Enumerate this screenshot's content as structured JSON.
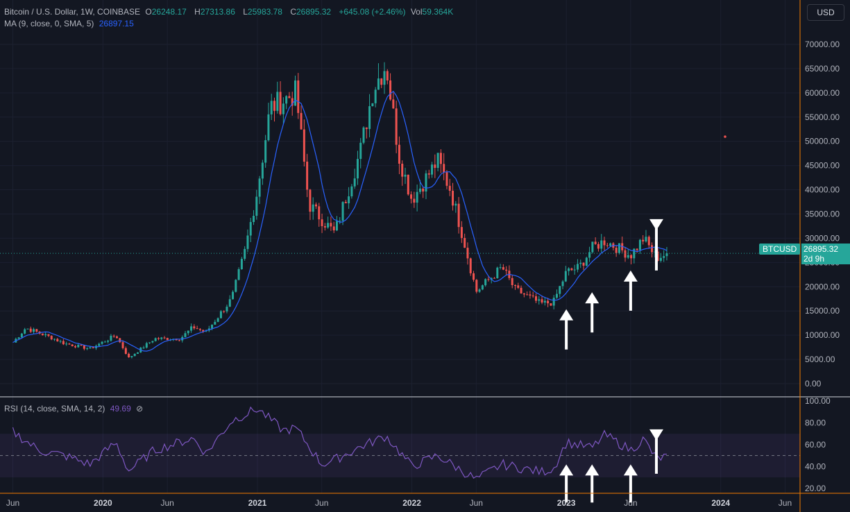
{
  "header": {
    "symbol": "Bitcoin / U.S. Dollar, 1W, COINBASE",
    "open_label": "O",
    "open": "26248.17",
    "high_label": "H",
    "high": "27313.86",
    "low_label": "L",
    "low": "25983.78",
    "close_label": "C",
    "close": "26895.32",
    "change": "+645.08 (+2.46%)",
    "vol_label": "Vol",
    "vol": "59.364K",
    "ma_label": "MA (9, close, 0, SMA, 5)",
    "ma_value": "26897.15",
    "rsi_label": "RSI (14, close, SMA, 14, 2)",
    "rsi_value": "49.69"
  },
  "currency": "USD",
  "last_price": {
    "symbol": "BTCUSD",
    "price": "26895.32",
    "countdown": "2d 9h"
  },
  "colors": {
    "up": "#26a69a",
    "down": "#ef5350",
    "ma": "#2962ff",
    "rsi": "#7e57c2",
    "price_badge": "#26a69a",
    "axis_border": "#f57c00"
  },
  "chart_data": [
    {
      "type": "candlestick",
      "series": [
        {
          "name": "Bitcoin / U.S. Dollar, 1W, COINBASE",
          "note": "weekly closes, estimated",
          "key_points": [
            {
              "x": "2019-06",
              "y": 8500
            },
            {
              "x": "2019-07",
              "y": 11500
            },
            {
              "x": "2019-09",
              "y": 9500
            },
            {
              "x": "2019-10",
              "y": 8300
            },
            {
              "x": "2019-12",
              "y": 7200
            },
            {
              "x": "2020-02",
              "y": 10000
            },
            {
              "x": "2020-03",
              "y": 5300
            },
            {
              "x": "2020-05",
              "y": 9300
            },
            {
              "x": "2020-07",
              "y": 9300
            },
            {
              "x": "2020-08",
              "y": 11700
            },
            {
              "x": "2020-09",
              "y": 10600
            },
            {
              "x": "2020-11",
              "y": 17500
            },
            {
              "x": "2020-12",
              "y": 27000
            },
            {
              "x": "2021-01",
              "y": 40000
            },
            {
              "x": "2021-02",
              "y": 57000
            },
            {
              "x": "2021-04",
              "y": 60000
            },
            {
              "x": "2021-05",
              "y": 37000
            },
            {
              "x": "2021-06",
              "y": 34000
            },
            {
              "x": "2021-07",
              "y": 31000
            },
            {
              "x": "2021-09",
              "y": 48000
            },
            {
              "x": "2021-10",
              "y": 61000
            },
            {
              "x": "2021-11",
              "y": 66000
            },
            {
              "x": "2021-12",
              "y": 47000
            },
            {
              "x": "2022-01",
              "y": 38000
            },
            {
              "x": "2022-03",
              "y": 46000
            },
            {
              "x": "2022-04",
              "y": 40000
            },
            {
              "x": "2022-05",
              "y": 30000
            },
            {
              "x": "2022-06",
              "y": 19000
            },
            {
              "x": "2022-08",
              "y": 24000
            },
            {
              "x": "2022-09",
              "y": 19500
            },
            {
              "x": "2022-11",
              "y": 16500
            },
            {
              "x": "2022-12",
              "y": 16800
            },
            {
              "x": "2023-01",
              "y": 23000
            },
            {
              "x": "2023-02",
              "y": 24000
            },
            {
              "x": "2023-03",
              "y": 28000
            },
            {
              "x": "2023-04",
              "y": 29500
            },
            {
              "x": "2023-06",
              "y": 26500
            },
            {
              "x": "2023-07",
              "y": 30000
            },
            {
              "x": "2023-08",
              "y": 26000
            },
            {
              "x": "2023-09",
              "y": 26895.32
            }
          ]
        },
        {
          "name": "MA (9, close, 0, SMA, 5)"
        }
      ],
      "y_ticks": [
        "70000.00",
        "65000.00",
        "60000.00",
        "55000.00",
        "50000.00",
        "45000.00",
        "40000.00",
        "35000.00",
        "30000.00",
        "25000.00",
        "20000.00",
        "15000.00",
        "10000.00",
        "5000.00",
        "0.00"
      ],
      "ylim": [
        0,
        72000
      ],
      "x_ticks": [
        {
          "label": "Jun",
          "major": false
        },
        {
          "label": "2020",
          "major": true
        },
        {
          "label": "Jun",
          "major": false
        },
        {
          "label": "2021",
          "major": true
        },
        {
          "label": "Jun",
          "major": false
        },
        {
          "label": "2022",
          "major": true
        },
        {
          "label": "Jun",
          "major": false
        },
        {
          "label": "2023",
          "major": true
        },
        {
          "label": "Jun",
          "major": false
        },
        {
          "label": "2024",
          "major": true
        },
        {
          "label": "Jun",
          "major": false
        }
      ],
      "xlim": [
        "2019-05",
        "2024-07"
      ],
      "annotations": [
        {
          "type": "arrow-up",
          "x": "2023-01",
          "y": 16500
        },
        {
          "type": "arrow-up",
          "x": "2023-03",
          "y": 20000
        },
        {
          "type": "arrow-up",
          "x": "2023-06",
          "y": 24500
        },
        {
          "type": "arrow-down",
          "x": "2023-08",
          "y": 30500
        }
      ]
    },
    {
      "type": "line",
      "series": [
        {
          "name": "RSI (14, close, SMA, 14, 2)",
          "note": "estimated",
          "key_points": [
            {
              "x": "2019-06",
              "y": 72
            },
            {
              "x": "2019-08",
              "y": 55
            },
            {
              "x": "2019-10",
              "y": 50
            },
            {
              "x": "2019-12",
              "y": 42
            },
            {
              "x": "2020-02",
              "y": 62
            },
            {
              "x": "2020-03",
              "y": 36
            },
            {
              "x": "2020-05",
              "y": 55
            },
            {
              "x": "2020-08",
              "y": 66
            },
            {
              "x": "2020-09",
              "y": 52
            },
            {
              "x": "2020-11",
              "y": 82
            },
            {
              "x": "2021-01",
              "y": 93
            },
            {
              "x": "2021-03",
              "y": 73
            },
            {
              "x": "2021-04",
              "y": 75
            },
            {
              "x": "2021-06",
              "y": 42
            },
            {
              "x": "2021-07",
              "y": 46
            },
            {
              "x": "2021-09",
              "y": 58
            },
            {
              "x": "2021-11",
              "y": 68
            },
            {
              "x": "2022-01",
              "y": 40
            },
            {
              "x": "2022-03",
              "y": 50
            },
            {
              "x": "2022-06",
              "y": 28
            },
            {
              "x": "2022-08",
              "y": 42
            },
            {
              "x": "2022-11",
              "y": 35
            },
            {
              "x": "2022-12",
              "y": 38
            },
            {
              "x": "2023-01",
              "y": 62
            },
            {
              "x": "2023-03",
              "y": 57
            },
            {
              "x": "2023-04",
              "y": 69
            },
            {
              "x": "2023-06",
              "y": 55
            },
            {
              "x": "2023-07",
              "y": 65
            },
            {
              "x": "2023-08",
              "y": 47
            },
            {
              "x": "2023-09",
              "y": 49.69
            }
          ]
        }
      ],
      "y_ticks": [
        "100.00",
        "80.00",
        "60.00",
        "40.00",
        "20.00"
      ],
      "ylim": [
        18,
        100
      ],
      "bands": {
        "upper": 70,
        "middle": 50,
        "lower": 30
      },
      "annotations": [
        {
          "type": "arrow-up",
          "x": "2023-01",
          "y": 40
        },
        {
          "type": "arrow-up",
          "x": "2023-03",
          "y": 40
        },
        {
          "type": "arrow-up",
          "x": "2023-06",
          "y": 40
        },
        {
          "type": "arrow-down",
          "x": "2023-08",
          "y": 60
        }
      ]
    }
  ]
}
